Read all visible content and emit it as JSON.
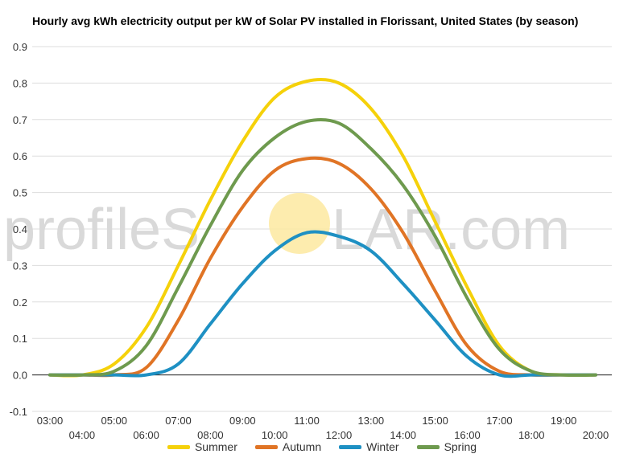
{
  "chart_data": {
    "type": "line",
    "title": "Hourly avg kWh electricity output per kW of Solar PV installed in Florissant, United States (by season)",
    "xlabel": "",
    "ylabel": "",
    "ylim": [
      -0.1,
      0.9
    ],
    "yticks": [
      "-0.1",
      "0.0",
      "0.1",
      "0.2",
      "0.3",
      "0.4",
      "0.5",
      "0.6",
      "0.7",
      "0.8",
      "0.9"
    ],
    "categories": [
      "03:00",
      "04:00",
      "05:00",
      "06:00",
      "07:00",
      "08:00",
      "09:00",
      "10:00",
      "11:00",
      "12:00",
      "13:00",
      "14:00",
      "15:00",
      "16:00",
      "17:00",
      "18:00",
      "19:00",
      "20:00"
    ],
    "grid": true,
    "legend": "bottom",
    "series": [
      {
        "name": "Summer",
        "color": "#f5d10a",
        "values": [
          0,
          0,
          0.03,
          0.13,
          0.3,
          0.48,
          0.64,
          0.76,
          0.805,
          0.8,
          0.73,
          0.6,
          0.42,
          0.24,
          0.08,
          0.01,
          0,
          0
        ]
      },
      {
        "name": "Autumn",
        "color": "#e07425",
        "values": [
          0,
          0,
          0,
          0.02,
          0.15,
          0.32,
          0.46,
          0.56,
          0.593,
          0.58,
          0.51,
          0.39,
          0.23,
          0.08,
          0.01,
          0,
          0,
          0
        ]
      },
      {
        "name": "Winter",
        "color": "#1e90c3",
        "values": [
          0,
          0,
          0,
          0,
          0.03,
          0.14,
          0.25,
          0.34,
          0.39,
          0.38,
          0.34,
          0.25,
          0.15,
          0.05,
          0,
          0,
          0,
          0
        ]
      },
      {
        "name": "Spring",
        "color": "#6e9a4e",
        "values": [
          0,
          0,
          0.01,
          0.08,
          0.24,
          0.41,
          0.56,
          0.65,
          0.695,
          0.69,
          0.62,
          0.52,
          0.38,
          0.21,
          0.07,
          0.01,
          0,
          0
        ]
      }
    ]
  },
  "watermark": {
    "left": "profileS",
    "right": "LAR.com",
    "sun_color": "#fde9a0"
  }
}
